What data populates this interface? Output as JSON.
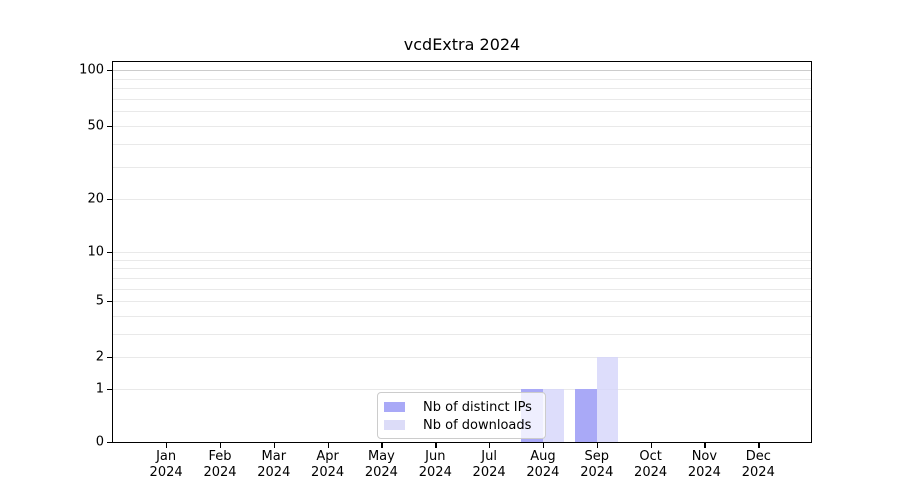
{
  "title": "vcdExtra 2024",
  "colors": {
    "ips_bar": "#a9a9f7",
    "downloads_bar_rgba": "rgba(212,212,250,0.8)",
    "downloads_swatch": "#dcdcf8",
    "grid_minor": "#e9e9e9",
    "grid_emphasis": "#cccccc",
    "axis": "#000000",
    "legend_border": "#cccccc"
  },
  "chart_data": {
    "type": "bar",
    "title": "vcdExtra 2024",
    "categories": [
      "Jan 2024",
      "Feb 2024",
      "Mar 2024",
      "Apr 2024",
      "May 2024",
      "Jun 2024",
      "Jul 2024",
      "Aug 2024",
      "Sep 2024",
      "Oct 2024",
      "Nov 2024",
      "Dec 2024"
    ],
    "series": [
      {
        "name": "Nb of distinct IPs",
        "values": [
          0,
          0,
          0,
          0,
          0,
          0,
          0,
          1,
          1,
          0,
          0,
          0
        ]
      },
      {
        "name": "Nb of downloads",
        "values": [
          0,
          0,
          0,
          0,
          0,
          0,
          0,
          1,
          2,
          0,
          0,
          0
        ]
      }
    ],
    "yscale": "log1p",
    "ylim": [
      0,
      113
    ],
    "yticks": [
      0,
      1,
      2,
      5,
      10,
      20,
      50,
      100
    ],
    "grid_values": [
      1,
      2,
      3,
      4,
      5,
      6,
      7,
      8,
      9,
      10,
      20,
      30,
      40,
      50,
      60,
      70,
      80,
      90,
      100
    ],
    "grid_emphasis_value": 100,
    "grid": "horizontal-only",
    "legend_position": "bottom-center-inside"
  },
  "legend": {
    "items": [
      {
        "label": "Nb of distinct IPs"
      },
      {
        "label": "Nb of downloads"
      }
    ]
  }
}
